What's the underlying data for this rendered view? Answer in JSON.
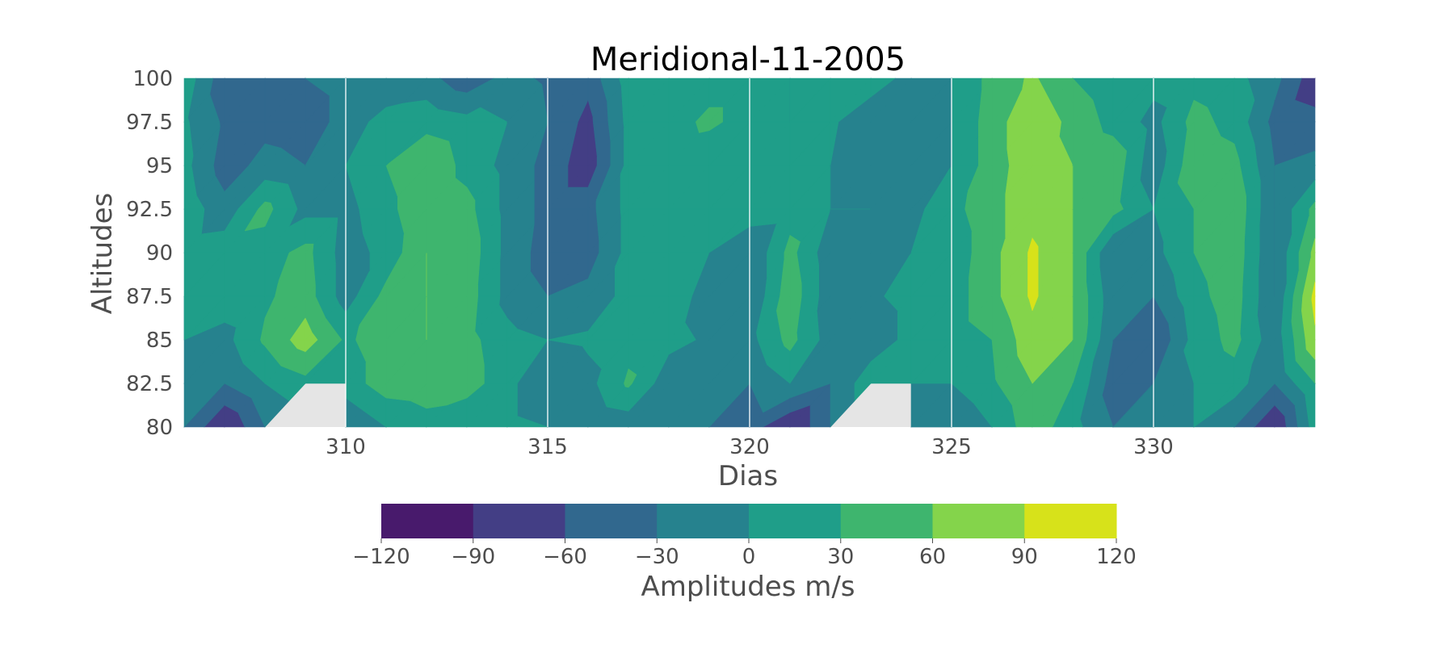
{
  "chart_data": {
    "type": "heatmap",
    "subtype": "filled-contour",
    "title": "Meridional-11-2005",
    "xlabel": "Dias",
    "ylabel": "Altitudes",
    "xlim": [
      306,
      334
    ],
    "ylim": [
      80,
      100
    ],
    "x_ticks": [
      310,
      315,
      320,
      325,
      330
    ],
    "y_ticks": [
      80,
      82.5,
      85,
      87.5,
      90,
      92.5,
      95,
      97.5,
      100
    ],
    "y_tick_labels": [
      "80",
      "82.5",
      "85",
      "87.5",
      "90",
      "92.5",
      "95",
      "97.5",
      "100"
    ],
    "grid": true,
    "missing_color": "#e5e5e5",
    "colorbar": {
      "label": "Amplitudes m/s",
      "orientation": "horizontal",
      "placement": "bottom",
      "levels": [
        -120,
        -90,
        -60,
        -30,
        0,
        30,
        60,
        90,
        120
      ],
      "tick_labels": [
        "−120",
        "−90",
        "−60",
        "−30",
        "0",
        "30",
        "60",
        "90",
        "120"
      ],
      "colors": [
        "#481a6c",
        "#433e85",
        "#31688e",
        "#26828e",
        "#1f9e89",
        "#3eb56e",
        "#84d44b",
        "#d7e21a"
      ]
    },
    "x": [
      306,
      307,
      308,
      309,
      310,
      311,
      312,
      313,
      314,
      315,
      316,
      317,
      318,
      319,
      320,
      321,
      322,
      323,
      324,
      325,
      326,
      327,
      328,
      329,
      330,
      331,
      332,
      333,
      334
    ],
    "y": [
      80,
      82.5,
      85,
      87.5,
      90,
      92.5,
      95,
      97.5,
      100
    ],
    "z": [
      [
        -30,
        -90,
        -30,
        null,
        -30,
        0,
        15,
        0,
        10,
        0,
        -30,
        -20,
        0,
        -30,
        -45,
        -90,
        -30,
        null,
        -30,
        -30,
        0,
        50,
        10,
        -30,
        -30,
        0,
        -30,
        -90,
        15
      ],
      [
        -15,
        -30,
        0,
        20,
        15,
        45,
        50,
        45,
        10,
        -30,
        -10,
        35,
        -20,
        -25,
        -30,
        0,
        -30,
        20,
        0,
        0,
        25,
        60,
        30,
        -45,
        -30,
        0,
        15,
        -30,
        30
      ],
      [
        0,
        -10,
        35,
        75,
        25,
        45,
        60,
        40,
        10,
        0,
        5,
        20,
        10,
        -5,
        -10,
        40,
        -15,
        -20,
        10,
        15,
        30,
        80,
        60,
        -30,
        -60,
        10,
        40,
        -20,
        85
      ],
      [
        0,
        15,
        25,
        45,
        -15,
        40,
        60,
        45,
        -10,
        -30,
        -20,
        10,
        20,
        -15,
        -30,
        50,
        -20,
        -5,
        10,
        15,
        50,
        95,
        60,
        -20,
        -30,
        20,
        45,
        -30,
        100
      ],
      [
        15,
        20,
        15,
        40,
        -15,
        10,
        60,
        50,
        -10,
        -45,
        -45,
        10,
        15,
        0,
        -30,
        40,
        -20,
        -10,
        0,
        10,
        50,
        95,
        60,
        -30,
        -10,
        30,
        50,
        -30,
        70
      ],
      [
        20,
        -20,
        40,
        -10,
        -10,
        20,
        55,
        40,
        -10,
        -40,
        -40,
        10,
        10,
        10,
        20,
        15,
        0,
        0,
        -10,
        20,
        50,
        80,
        60,
        40,
        0,
        30,
        55,
        -30,
        40
      ],
      [
        10,
        -45,
        -20,
        -30,
        0,
        30,
        55,
        20,
        -10,
        -40,
        -80,
        10,
        15,
        10,
        10,
        10,
        0,
        -10,
        -20,
        0,
        45,
        80,
        60,
        50,
        -20,
        50,
        40,
        -30,
        -20
      ],
      [
        5,
        -35,
        -40,
        -45,
        -20,
        15,
        20,
        10,
        0,
        -30,
        -70,
        10,
        20,
        35,
        20,
        0,
        5,
        -20,
        -30,
        0,
        45,
        85,
        50,
        20,
        -10,
        40,
        20,
        -40,
        -50
      ],
      [
        20,
        -50,
        -40,
        -30,
        -20,
        -30,
        -20,
        -50,
        -20,
        -35,
        -50,
        15,
        10,
        20,
        20,
        0,
        10,
        15,
        -10,
        0,
        40,
        65,
        30,
        10,
        10,
        20,
        10,
        -20,
        -80
      ]
    ]
  }
}
